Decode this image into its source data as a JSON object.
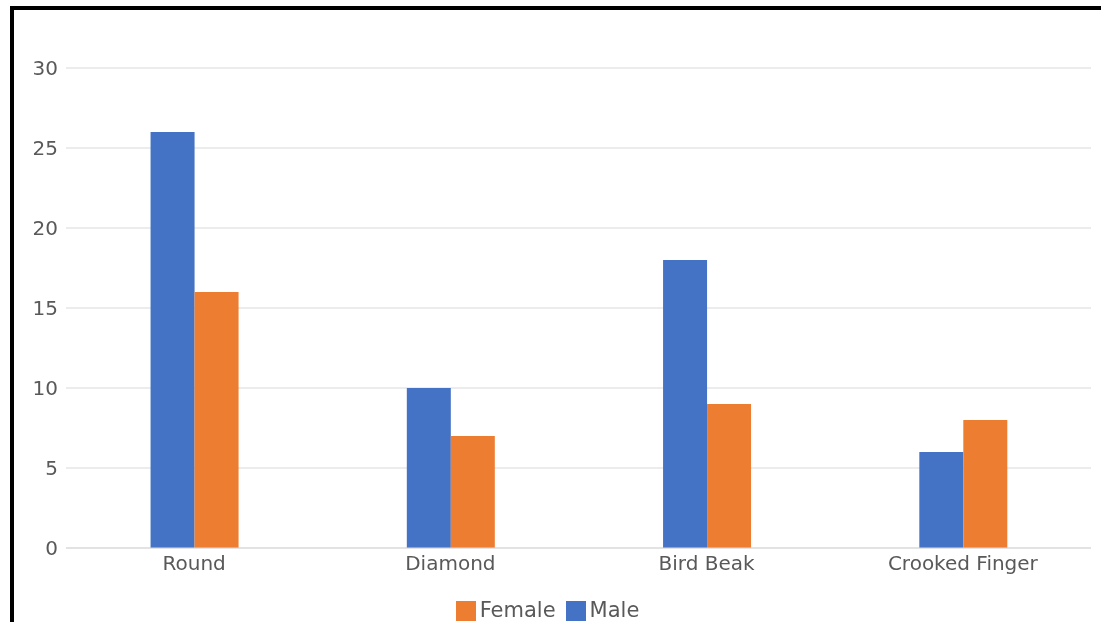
{
  "chart_data": {
    "type": "bar",
    "categories": [
      "Round",
      "Diamond",
      "Bird Beak",
      "Crooked Finger"
    ],
    "series": [
      {
        "name": "Male",
        "color": "#4472c4",
        "values": [
          26,
          10,
          18,
          6
        ]
      },
      {
        "name": "Female",
        "color": "#ed7d31",
        "values": [
          16,
          7,
          9,
          8
        ]
      }
    ],
    "ylim": [
      0,
      30
    ],
    "yticks": [
      0,
      5,
      10,
      15,
      20,
      25,
      30
    ],
    "grid": "y",
    "legend": "bottom"
  }
}
